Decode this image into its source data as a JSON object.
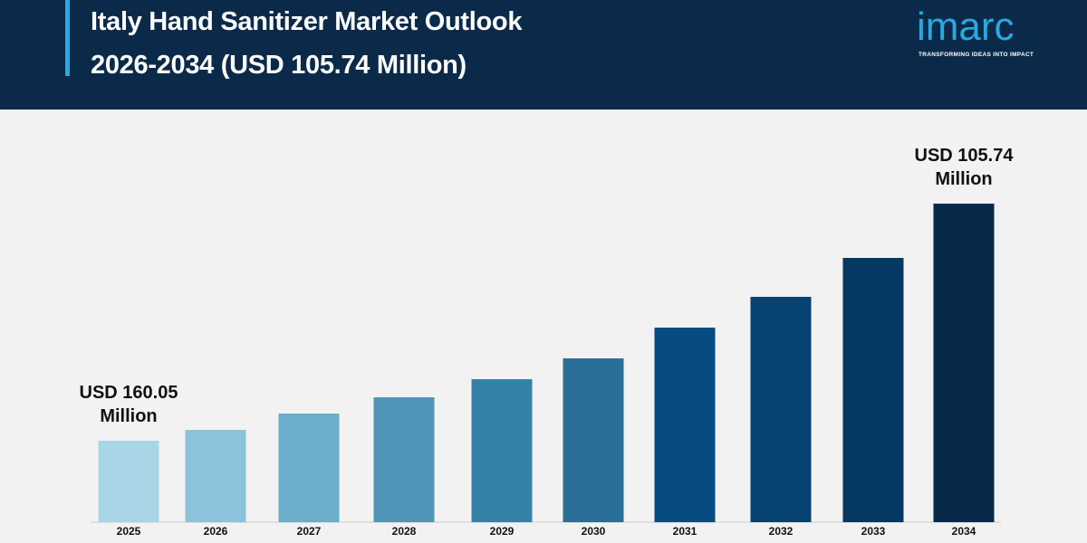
{
  "header": {
    "title_line1": "Italy Hand Sanitizer Market Outlook",
    "title_line2": "2026-2034 (USD 105.74 Million)"
  },
  "logo": {
    "word": "imarc",
    "tagline": "TRANSFORMING IDEAS INTO IMPACT"
  },
  "colors": {
    "header_bg": "#0b2a4a",
    "accent": "#2aa8e0",
    "background": "#f2f2f2"
  },
  "chart_data": {
    "type": "bar",
    "categories": [
      "2025",
      "2026",
      "2027",
      "2028",
      "2029",
      "2030",
      "2031",
      "2032",
      "2033",
      "2034"
    ],
    "values": [
      90,
      102,
      120,
      138,
      158,
      181,
      215,
      249,
      292,
      352
    ],
    "bar_colors": [
      "#a8d5e6",
      "#8cc3da",
      "#6aaecb",
      "#4e95b7",
      "#3582a8",
      "#2a6f97",
      "#074c80",
      "#064373",
      "#063864",
      "#072a4a"
    ],
    "annotations": [
      {
        "category": "2025",
        "line1": "USD 160.05",
        "line2": "Million"
      },
      {
        "category": "2034",
        "line1": "USD 105.74",
        "line2": "Million"
      }
    ],
    "ylim": [
      0,
      380
    ],
    "xlabel": "",
    "ylabel": ""
  }
}
